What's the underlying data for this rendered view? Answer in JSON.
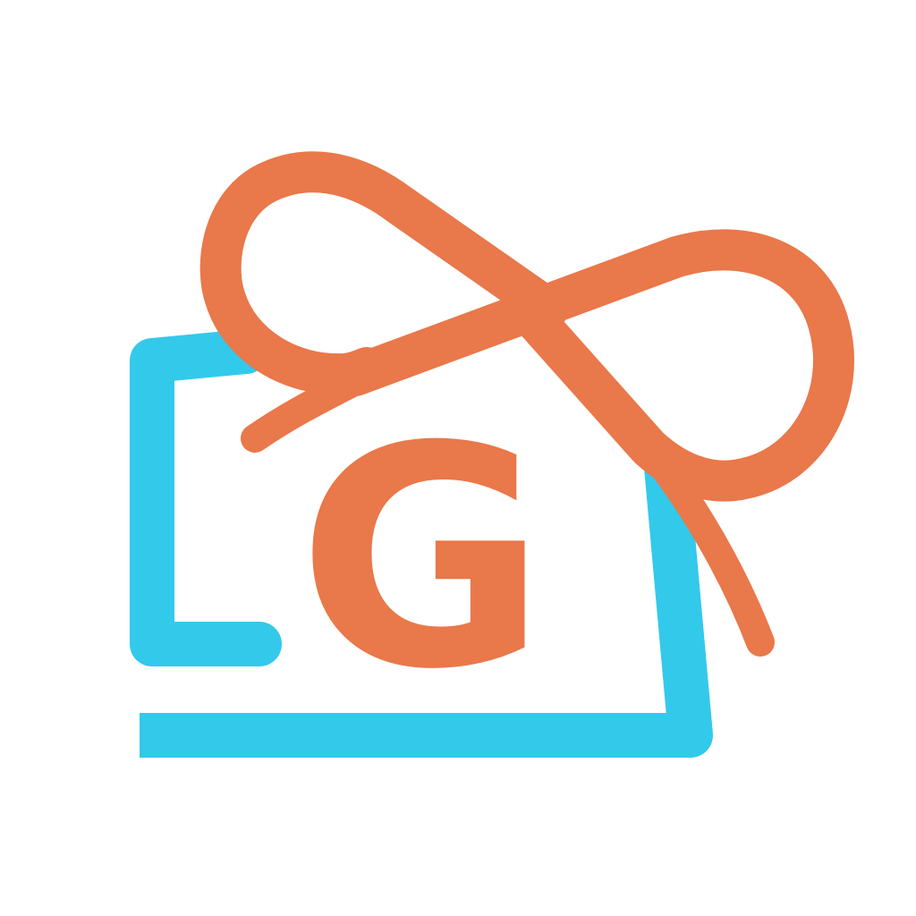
{
  "logo": {
    "letter": "G",
    "icon": "gift-card-ribbon-icon",
    "colors": {
      "background": "#ffffff",
      "card": "#33c9eb",
      "ribbon": "#e9784a",
      "letter": "#e9784a"
    }
  }
}
